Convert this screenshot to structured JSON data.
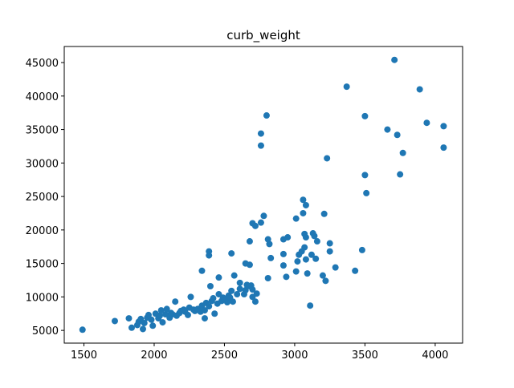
{
  "chart_data": {
    "type": "scatter",
    "title": "curb_weight",
    "color": "#1f77b4",
    "x": [
      1490,
      1720,
      1820,
      1840,
      1880,
      1890,
      1905,
      1920,
      1930,
      1950,
      1960,
      1980,
      1990,
      2010,
      2030,
      2040,
      2050,
      2060,
      2080,
      2090,
      2110,
      2120,
      2130,
      2150,
      2160,
      2180,
      2190,
      2210,
      2220,
      2240,
      2250,
      2260,
      2280,
      2290,
      2310,
      2330,
      2340,
      2360,
      2370,
      2390,
      2410,
      2420,
      2430,
      2450,
      2460,
      2480,
      2490,
      2500,
      2520,
      2530,
      2550,
      2560,
      2590,
      2610,
      2640,
      2650,
      2680,
      2690,
      2700,
      2730,
      2340,
      2400,
      2360,
      2390,
      2390,
      2460,
      2550,
      2540,
      2570,
      2610,
      2660,
      2680,
      2700,
      2720,
      2650,
      2680,
      2720,
      2700,
      2760,
      2760,
      2800,
      2760,
      2780,
      2810,
      2810,
      2820,
      2830,
      2920,
      2950,
      2920,
      2920,
      2940,
      3010,
      3010,
      3020,
      3030,
      3050,
      3060,
      3060,
      3070,
      3070,
      3080,
      3080,
      3080,
      3090,
      3110,
      3120,
      3130,
      3140,
      3150,
      3160,
      3200,
      3210,
      3220,
      3230,
      3250,
      3250,
      3290,
      3370,
      3430,
      3480,
      3500,
      3500,
      3510,
      3660,
      3710,
      3730,
      3750,
      3770,
      3890,
      3940,
      4060,
      4060
    ],
    "y": [
      5100,
      6400,
      6800,
      5400,
      5800,
      6300,
      6700,
      5200,
      6100,
      6900,
      7300,
      6600,
      5700,
      7500,
      6800,
      7200,
      8000,
      6200,
      7400,
      8200,
      6900,
      7600,
      7400,
      9300,
      7200,
      7600,
      7900,
      8100,
      7800,
      7300,
      8400,
      10000,
      8100,
      7900,
      8200,
      7800,
      8700,
      8000,
      9100,
      8600,
      9400,
      9800,
      7500,
      9000,
      10400,
      9400,
      9900,
      9700,
      9200,
      10200,
      10900,
      9300,
      10400,
      11200,
      10400,
      11000,
      11600,
      11700,
      10000,
      10500,
      13900,
      11600,
      6800,
      16800,
      16200,
      12900,
      16500,
      9900,
      13200,
      12100,
      11800,
      14800,
      11100,
      9300,
      15000,
      18300,
      20600,
      21000,
      34400,
      32600,
      37100,
      21100,
      22100,
      18600,
      12800,
      17900,
      15800,
      18600,
      18900,
      14700,
      16400,
      13000,
      21700,
      13800,
      15300,
      16300,
      16800,
      24500,
      22500,
      17400,
      19400,
      23700,
      18900,
      15600,
      13500,
      8700,
      16300,
      19500,
      19100,
      15700,
      18300,
      13200,
      22400,
      12400,
      30700,
      18000,
      16800,
      14400,
      41400,
      13900,
      17000,
      37000,
      28200,
      25500,
      35000,
      45400,
      34200,
      28300,
      31500,
      41000,
      36000,
      35500,
      32300
    ],
    "xlim": [
      1360,
      4195
    ],
    "ylim": [
      3100,
      47400
    ],
    "xticks": [
      1500,
      2000,
      2500,
      3000,
      3500,
      4000
    ],
    "yticks": [
      5000,
      10000,
      15000,
      20000,
      25000,
      30000,
      35000,
      40000,
      45000
    ]
  }
}
